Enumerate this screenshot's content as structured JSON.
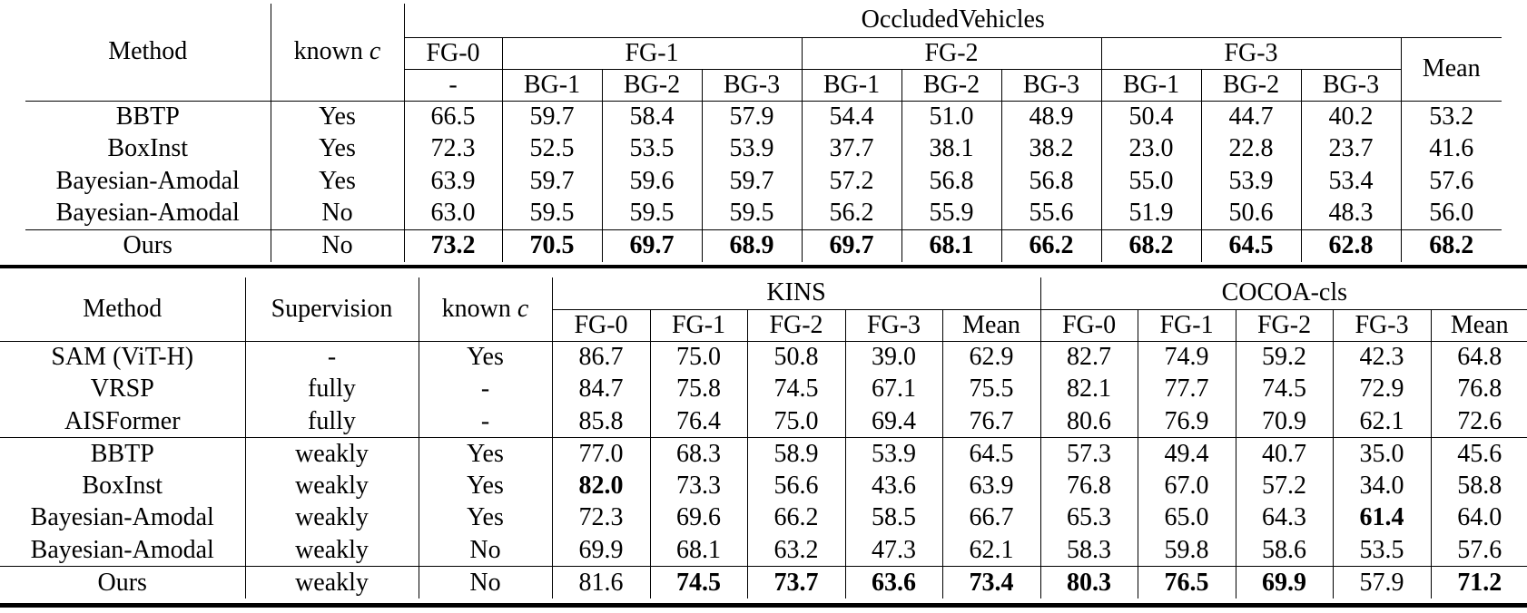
{
  "top_table": {
    "headers": {
      "method": "Method",
      "known_c": "known ",
      "known_c_var": "c",
      "dataset": "OccludedVehicles",
      "fg": [
        "FG-0",
        "FG-1",
        "FG-2",
        "FG-3"
      ],
      "fg0_sub": "-",
      "bg": [
        "BG-1",
        "BG-2",
        "BG-3",
        "BG-1",
        "BG-2",
        "BG-3",
        "BG-1",
        "BG-2",
        "BG-3"
      ],
      "mean": "Mean"
    },
    "rows": [
      {
        "method": "BBTP",
        "known_c": "Yes",
        "values": [
          "66.5",
          "59.7",
          "58.4",
          "57.9",
          "54.4",
          "51.0",
          "48.9",
          "50.4",
          "44.7",
          "40.2",
          "53.2"
        ],
        "bold": []
      },
      {
        "method": "BoxInst",
        "known_c": "Yes",
        "values": [
          "72.3",
          "52.5",
          "53.5",
          "53.9",
          "37.7",
          "38.1",
          "38.2",
          "23.0",
          "22.8",
          "23.7",
          "41.6"
        ],
        "bold": []
      },
      {
        "method": "Bayesian-Amodal",
        "known_c": "Yes",
        "values": [
          "63.9",
          "59.7",
          "59.6",
          "59.7",
          "57.2",
          "56.8",
          "56.8",
          "55.0",
          "53.9",
          "53.4",
          "57.6"
        ],
        "bold": []
      },
      {
        "method": "Bayesian-Amodal",
        "known_c": "No",
        "values": [
          "63.0",
          "59.5",
          "59.5",
          "59.5",
          "56.2",
          "55.9",
          "55.6",
          "51.9",
          "50.6",
          "48.3",
          "56.0"
        ],
        "bold": []
      },
      {
        "method": "Ours",
        "known_c": "No",
        "values": [
          "73.2",
          "70.5",
          "69.7",
          "68.9",
          "69.7",
          "68.1",
          "66.2",
          "68.2",
          "64.5",
          "62.8",
          "68.2"
        ],
        "bold": [
          0,
          1,
          2,
          3,
          4,
          5,
          6,
          7,
          8,
          9,
          10
        ]
      }
    ]
  },
  "bottom_table": {
    "headers": {
      "method": "Method",
      "supervision": "Supervision",
      "known_c": "known ",
      "known_c_var": "c",
      "datasets": [
        "KINS",
        "COCOA-cls"
      ],
      "cols": [
        "FG-0",
        "FG-1",
        "FG-2",
        "FG-3",
        "Mean",
        "FG-0",
        "FG-1",
        "FG-2",
        "FG-3",
        "Mean"
      ]
    },
    "rows": [
      {
        "method": "SAM (ViT-H)",
        "supervision": "-",
        "known_c": "Yes",
        "values": [
          "86.7",
          "75.0",
          "50.8",
          "39.0",
          "62.9",
          "82.7",
          "74.9",
          "59.2",
          "42.3",
          "64.8"
        ],
        "bold": []
      },
      {
        "method": "VRSP",
        "supervision": "fully",
        "known_c": "-",
        "values": [
          "84.7",
          "75.8",
          "74.5",
          "67.1",
          "75.5",
          "82.1",
          "77.7",
          "74.5",
          "72.9",
          "76.8"
        ],
        "bold": []
      },
      {
        "method": "AISFormer",
        "supervision": "fully",
        "known_c": "-",
        "values": [
          "85.8",
          "76.4",
          "75.0",
          "69.4",
          "76.7",
          "80.6",
          "76.9",
          "70.9",
          "62.1",
          "72.6"
        ],
        "bold": []
      },
      {
        "method": "BBTP",
        "supervision": "weakly",
        "known_c": "Yes",
        "values": [
          "77.0",
          "68.3",
          "58.9",
          "53.9",
          "64.5",
          "57.3",
          "49.4",
          "40.7",
          "35.0",
          "45.6"
        ],
        "bold": []
      },
      {
        "method": "BoxInst",
        "supervision": "weakly",
        "known_c": "Yes",
        "values": [
          "82.0",
          "73.3",
          "56.6",
          "43.6",
          "63.9",
          "76.8",
          "67.0",
          "57.2",
          "34.0",
          "58.8"
        ],
        "bold": [
          0
        ]
      },
      {
        "method": "Bayesian-Amodal",
        "supervision": "weakly",
        "known_c": "Yes",
        "values": [
          "72.3",
          "69.6",
          "66.2",
          "58.5",
          "66.7",
          "65.3",
          "65.0",
          "64.3",
          "61.4",
          "64.0"
        ],
        "bold": [
          8
        ]
      },
      {
        "method": "Bayesian-Amodal",
        "supervision": "weakly",
        "known_c": "No",
        "values": [
          "69.9",
          "68.1",
          "63.2",
          "47.3",
          "62.1",
          "58.3",
          "59.8",
          "58.6",
          "53.5",
          "57.6"
        ],
        "bold": []
      },
      {
        "method": "Ours",
        "supervision": "weakly",
        "known_c": "No",
        "values": [
          "81.6",
          "74.5",
          "73.7",
          "63.6",
          "73.4",
          "80.3",
          "76.5",
          "69.9",
          "57.9",
          "71.2"
        ],
        "bold": [
          1,
          2,
          3,
          4,
          5,
          6,
          7,
          9
        ]
      }
    ]
  }
}
